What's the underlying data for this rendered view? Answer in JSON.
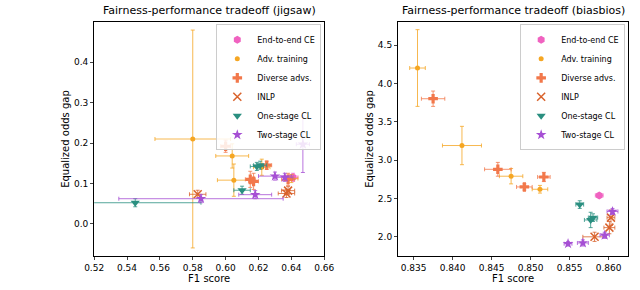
{
  "chart_data": [
    {
      "type": "scatter",
      "title": "Fairness-performance tradeoff (jigsaw)",
      "x_label": "F1 score",
      "y_label": "Equalized odds gap",
      "xlim": [
        0.52,
        0.66
      ],
      "xticks": [
        0.52,
        0.54,
        0.56,
        0.58,
        {
          "value": 0.6,
          "label": "0.60"
        },
        0.62,
        0.64,
        0.66
      ],
      "ylim": [
        -0.08,
        0.5
      ],
      "yticks": [
        {
          "value": 0,
          "label": "0.0"
        },
        0.1,
        0.2,
        0.3,
        0.4
      ],
      "grid": false,
      "legend": "upper right",
      "series": [
        {
          "name": "End-to-end CE",
          "color": "#f062c0",
          "marker": "hexagon",
          "x": [
            0.641
          ],
          "values": [
            0.115
          ],
          "x_error": [
            0.003
          ],
          "y_error": [
            0.01
          ]
        },
        {
          "name": "Adv. training",
          "color": "#f5a623",
          "marker": "circle",
          "x": [
            0.58,
            0.604,
            0.605,
            0.622,
            0.64
          ],
          "values": [
            0.21,
            0.168,
            0.108,
            0.14,
            0.112
          ],
          "x_error": [
            0.023,
            0.01,
            0.01,
            0.005,
            0.004
          ],
          "y_error": [
            0.27,
            0.03,
            0.04,
            0.02,
            0.01
          ]
        },
        {
          "name": "Diverse advs.",
          "color": "#f2784b",
          "marker": "cross",
          "x": [
            0.6,
            0.615,
            0.617,
            0.625,
            0.638
          ],
          "values": [
            0.192,
            0.11,
            0.105,
            0.145,
            0.11
          ],
          "x_error": [
            0.003,
            0.003,
            0.003,
            0.003,
            0.004
          ],
          "y_error": [
            0.015,
            0.02,
            0.02,
            0.01,
            0.015
          ]
        },
        {
          "name": "INLP",
          "color": "#d9622b",
          "marker": "x",
          "x": [
            0.583,
            0.637,
            0.638
          ],
          "values": [
            0.073,
            0.075,
            0.082
          ],
          "x_error": [
            0.005,
            0.005,
            0.004
          ],
          "y_error": [
            0.01,
            0.01,
            0.01
          ]
        },
        {
          "name": "One-stage CL",
          "color": "#2a8f80",
          "marker": "triangle-down",
          "x": [
            0.545,
            0.61,
            0.619,
            0.621
          ],
          "values": [
            0.052,
            0.083,
            0.142,
            0.145
          ],
          "x_error": [
            0.04,
            0.005,
            0.004,
            0.004
          ],
          "y_error": [
            0.01,
            0.01,
            0.01,
            0.01
          ]
        },
        {
          "name": "Two-stage CL",
          "color": "#a64fd4",
          "marker": "star",
          "x": [
            0.585,
            0.618,
            0.63,
            0.636,
            0.647
          ],
          "values": [
            0.062,
            0.072,
            0.118,
            0.115,
            0.197
          ],
          "x_error": [
            0.05,
            0.01,
            0.01,
            0.005,
            0.004
          ],
          "y_error": [
            0.01,
            0.01,
            0.01,
            0.01,
            0.07
          ]
        }
      ]
    },
    {
      "type": "scatter",
      "title": "Fairness-performance tradeoff (biasbios)",
      "x_label": "F1 score",
      "y_label": "Equalized odds gap",
      "xlim": [
        0.833,
        0.8625
      ],
      "xticks": [
        0.835,
        {
          "value": 0.84,
          "label": "0.840"
        },
        0.845,
        {
          "value": 0.85,
          "label": "0.850"
        },
        0.855,
        {
          "value": 0.86,
          "label": "0.860"
        }
      ],
      "ylim": [
        1.75,
        4.8
      ],
      "yticks": [
        {
          "value": 2,
          "label": "2.0"
        },
        2.5,
        {
          "value": 3,
          "label": "3.0"
        },
        3.5,
        {
          "value": 4,
          "label": "4.0"
        },
        4.5
      ],
      "grid": false,
      "legend": "upper right",
      "series": [
        {
          "name": "End-to-end CE",
          "color": "#f062c0",
          "marker": "hexagon",
          "x": [
            0.8588
          ],
          "values": [
            2.54
          ],
          "x_error": [
            0.0005
          ],
          "y_error": [
            0.02
          ]
        },
        {
          "name": "Adv. training",
          "color": "#f5a623",
          "marker": "circle",
          "x": [
            0.8355,
            0.8412,
            0.8475,
            0.8512
          ],
          "values": [
            4.2,
            3.19,
            2.79,
            2.62
          ],
          "x_error": [
            0.001,
            0.0025,
            0.0015,
            0.001
          ],
          "y_error": [
            0.5,
            0.25,
            0.1,
            0.05
          ]
        },
        {
          "name": "Diverse advs.",
          "color": "#f2784b",
          "marker": "cross",
          "x": [
            0.8375,
            0.8458,
            0.8492,
            0.8517
          ],
          "values": [
            3.8,
            2.88,
            2.65,
            2.78
          ],
          "x_error": [
            0.0015,
            0.0017,
            0.001,
            0.0008
          ],
          "y_error": [
            0.1,
            0.09,
            0.04,
            0.06
          ]
        },
        {
          "name": "INLP",
          "color": "#d9622b",
          "marker": "x",
          "x": [
            0.8582,
            0.8601,
            0.8603
          ],
          "values": [
            2.0,
            2.12,
            2.25
          ],
          "x_error": [
            0.0015,
            0.0007,
            0.0005
          ],
          "y_error": [
            0.06,
            0.08,
            0.1
          ]
        },
        {
          "name": "One-stage CL",
          "color": "#2a8f80",
          "marker": "triangle-down",
          "x": [
            0.8563,
            0.8577,
            0.858
          ],
          "values": [
            2.42,
            2.22,
            2.25
          ],
          "x_error": [
            0.0005,
            0.0008,
            0.0006
          ],
          "y_error": [
            0.05,
            0.1,
            0.05
          ]
        },
        {
          "name": "Two-stage CL",
          "color": "#a64fd4",
          "marker": "star",
          "x": [
            0.8548,
            0.8567,
            0.8595,
            0.8605
          ],
          "values": [
            1.91,
            1.92,
            2.02,
            2.33
          ],
          "x_error": [
            0.0005,
            0.0007,
            0.0006,
            0.0007
          ],
          "y_error": [
            0.03,
            0.04,
            0.04,
            0.04
          ]
        }
      ]
    }
  ]
}
